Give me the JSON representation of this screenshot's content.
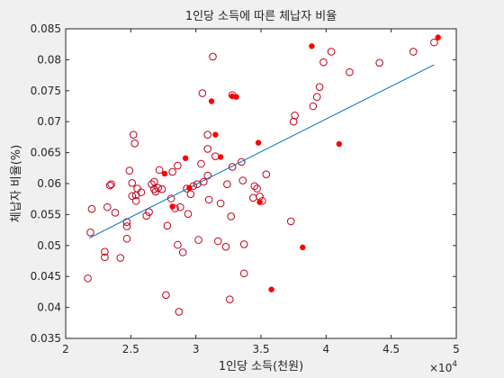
{
  "chart_data": {
    "type": "scatter",
    "title": "1인당 소득에 따른 체납자 비율",
    "xlabel": "1인당 소득(천원)",
    "ylabel": "체납자 비율(%)",
    "x_exponent_label": "×10",
    "x_exponent_power": "4",
    "xlim": [
      20000,
      50000
    ],
    "ylim": [
      0.035,
      0.085
    ],
    "xticks": [
      20000,
      25000,
      30000,
      35000,
      40000,
      45000,
      50000
    ],
    "xtick_labels": [
      "2",
      "2.5",
      "3",
      "3.5",
      "4",
      "4.5",
      "5"
    ],
    "yticks": [
      0.035,
      0.04,
      0.045,
      0.05,
      0.055,
      0.06,
      0.065,
      0.07,
      0.075,
      0.08,
      0.085
    ],
    "ytick_labels": [
      "0.035",
      "0.04",
      "0.045",
      "0.05",
      "0.055",
      "0.06",
      "0.065",
      "0.07",
      "0.075",
      "0.08",
      "0.085"
    ],
    "grid": false,
    "colors": {
      "marker": "#c0001a",
      "filled": "#ff0000",
      "fit_line": "#0072bd",
      "axes": "#262626",
      "plot_bg": "#ffffff",
      "figure_bg": "#f0f0f0"
    },
    "series": [
      {
        "marker": "open-circle",
        "points": [
          [
            21700,
            0.0447
          ],
          [
            21900,
            0.0521
          ],
          [
            22000,
            0.0559
          ],
          [
            23000,
            0.049
          ],
          [
            23000,
            0.0481
          ],
          [
            23200,
            0.0562
          ],
          [
            23400,
            0.0597
          ],
          [
            23500,
            0.0599
          ],
          [
            23800,
            0.0553
          ],
          [
            24200,
            0.048
          ],
          [
            24700,
            0.0531
          ],
          [
            24700,
            0.0538
          ],
          [
            24700,
            0.0511
          ],
          [
            24900,
            0.0621
          ],
          [
            25100,
            0.058
          ],
          [
            25100,
            0.0601
          ],
          [
            25200,
            0.0679
          ],
          [
            25300,
            0.0665
          ],
          [
            25400,
            0.0572
          ],
          [
            25400,
            0.0581
          ],
          [
            25500,
            0.0592
          ],
          [
            25800,
            0.0586
          ],
          [
            26200,
            0.0548
          ],
          [
            26400,
            0.0554
          ],
          [
            26600,
            0.0599
          ],
          [
            26800,
            0.0603
          ],
          [
            26800,
            0.0591
          ],
          [
            26900,
            0.0587
          ],
          [
            27100,
            0.0593
          ],
          [
            27200,
            0.0622
          ],
          [
            27400,
            0.0591
          ],
          [
            27700,
            0.042
          ],
          [
            27800,
            0.0532
          ],
          [
            28100,
            0.0576
          ],
          [
            28200,
            0.0619
          ],
          [
            28400,
            0.056
          ],
          [
            28600,
            0.0629
          ],
          [
            28600,
            0.0501
          ],
          [
            28700,
            0.0393
          ],
          [
            28800,
            0.0562
          ],
          [
            29000,
            0.0489
          ],
          [
            29300,
            0.0592
          ],
          [
            29400,
            0.0551
          ],
          [
            29600,
            0.0583
          ],
          [
            29800,
            0.0596
          ],
          [
            30100,
            0.0599
          ],
          [
            30200,
            0.0509
          ],
          [
            30400,
            0.0632
          ],
          [
            30500,
            0.0746
          ],
          [
            30600,
            0.0603
          ],
          [
            30900,
            0.0679
          ],
          [
            30900,
            0.0656
          ],
          [
            30900,
            0.0613
          ],
          [
            31000,
            0.0574
          ],
          [
            31300,
            0.0805
          ],
          [
            31500,
            0.0644
          ],
          [
            31700,
            0.0507
          ],
          [
            31900,
            0.0568
          ],
          [
            32300,
            0.0498
          ],
          [
            32400,
            0.0599
          ],
          [
            32600,
            0.0413
          ],
          [
            32700,
            0.0547
          ],
          [
            32800,
            0.0743
          ],
          [
            32800,
            0.0627
          ],
          [
            33500,
            0.0635
          ],
          [
            33600,
            0.0605
          ],
          [
            33700,
            0.0502
          ],
          [
            33700,
            0.0455
          ],
          [
            34400,
            0.0577
          ],
          [
            34500,
            0.0596
          ],
          [
            34700,
            0.0592
          ],
          [
            34900,
            0.0579
          ],
          [
            35100,
            0.0572
          ],
          [
            35400,
            0.0615
          ],
          [
            37300,
            0.0539
          ],
          [
            37500,
            0.07
          ],
          [
            37600,
            0.071
          ],
          [
            39000,
            0.0725
          ],
          [
            39300,
            0.074
          ],
          [
            39500,
            0.0756
          ],
          [
            39800,
            0.0796
          ],
          [
            40400,
            0.0813
          ],
          [
            41800,
            0.078
          ],
          [
            44100,
            0.0795
          ],
          [
            46700,
            0.0813
          ],
          [
            48300,
            0.0828
          ]
        ]
      },
      {
        "marker": "filled-dot",
        "points": [
          [
            27600,
            0.0616
          ],
          [
            28200,
            0.0563
          ],
          [
            29200,
            0.0641
          ],
          [
            29500,
            0.0593
          ],
          [
            31200,
            0.0733
          ],
          [
            31500,
            0.0679
          ],
          [
            31900,
            0.0643
          ],
          [
            32800,
            0.0741
          ],
          [
            33100,
            0.074
          ],
          [
            34800,
            0.0666
          ],
          [
            34900,
            0.057
          ],
          [
            35800,
            0.0429
          ],
          [
            38200,
            0.0497
          ],
          [
            38900,
            0.0822
          ],
          [
            41000,
            0.0664
          ],
          [
            48600,
            0.0836
          ]
        ]
      }
    ],
    "fit_line": {
      "x": [
        21800,
        48300
      ],
      "y": [
        0.0512,
        0.0792
      ]
    }
  }
}
